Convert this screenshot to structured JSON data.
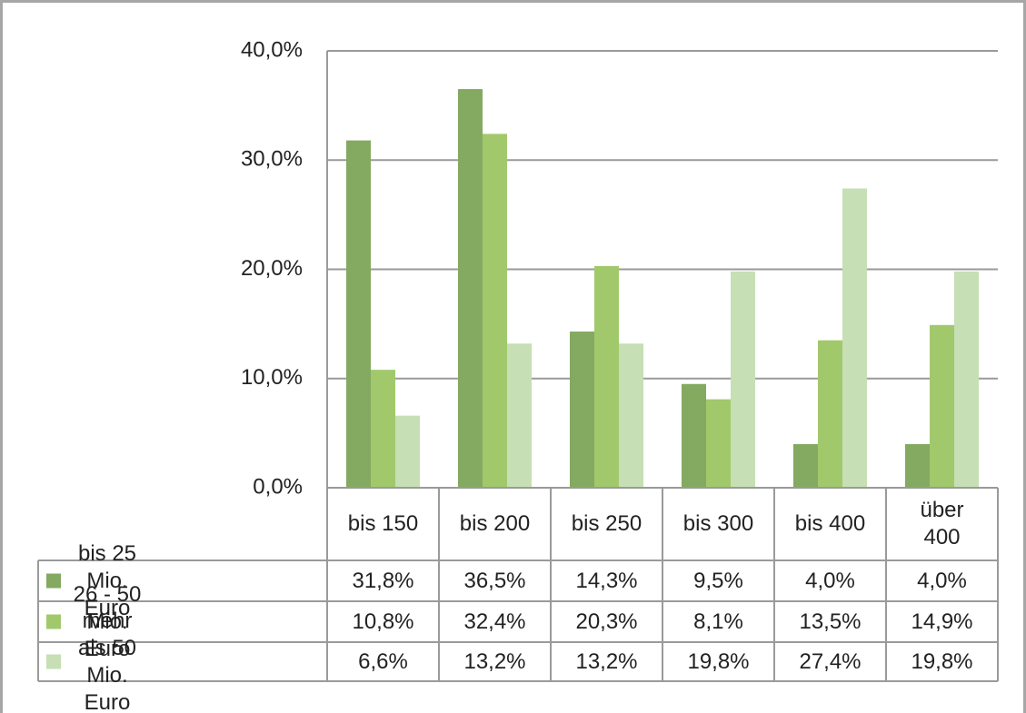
{
  "chart_data": {
    "type": "bar",
    "categories": [
      "bis 150",
      "bis 200",
      "bis 250",
      "bis 300",
      "bis 400",
      "über 400"
    ],
    "series": [
      {
        "name": "bis 25 Mio. Euro",
        "color": "#84a960",
        "values": [
          31.8,
          36.5,
          14.3,
          9.5,
          4.0,
          4.0
        ],
        "value_labels": [
          "31,8%",
          "36,5%",
          "14,3%",
          "9,5%",
          "4,0%",
          "4,0%"
        ]
      },
      {
        "name": "26 - 50 Mio. Euro",
        "color": "#a1c96c",
        "values": [
          10.8,
          32.4,
          20.3,
          8.1,
          13.5,
          14.9
        ],
        "value_labels": [
          "10,8%",
          "32,4%",
          "20,3%",
          "8,1%",
          "13,5%",
          "14,9%"
        ]
      },
      {
        "name": "mehr als 50 Mio. Euro",
        "color": "#c6dfb4",
        "values": [
          6.6,
          13.2,
          13.2,
          19.8,
          27.4,
          19.8
        ],
        "value_labels": [
          "6,6%",
          "13,2%",
          "13,2%",
          "19,8%",
          "27,4%",
          "19,8%"
        ]
      }
    ],
    "ylim": [
      0,
      40
    ],
    "yticks": [
      {
        "value": 0,
        "label": "0,0%"
      },
      {
        "value": 10,
        "label": "10,0%"
      },
      {
        "value": 20,
        "label": "20,0%"
      },
      {
        "value": 30,
        "label": "30,0%"
      },
      {
        "value": 40,
        "label": "40,0%"
      }
    ],
    "grid": true
  }
}
